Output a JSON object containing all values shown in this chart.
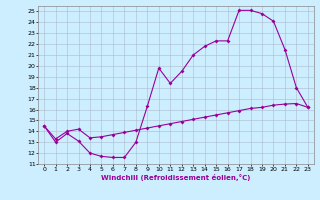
{
  "title": "",
  "xlabel": "Windchill (Refroidissement éolien,°C)",
  "bg_color": "#cceeff",
  "line_color": "#990099",
  "marker": "D",
  "markersize": 2,
  "linewidth": 0.8,
  "xlim": [
    -0.5,
    23.5
  ],
  "ylim": [
    11,
    25.5
  ],
  "yticks": [
    11,
    12,
    13,
    14,
    15,
    16,
    17,
    18,
    19,
    20,
    21,
    22,
    23,
    24,
    25
  ],
  "xticks": [
    0,
    1,
    2,
    3,
    4,
    5,
    6,
    7,
    8,
    9,
    10,
    11,
    12,
    13,
    14,
    15,
    16,
    17,
    18,
    19,
    20,
    21,
    22,
    23
  ],
  "series1_x": [
    0,
    1,
    2,
    3,
    4,
    5,
    6,
    7,
    8,
    9,
    10,
    11,
    12,
    13,
    14,
    15,
    16,
    17,
    18,
    19,
    20,
    21,
    22,
    23
  ],
  "series1_y": [
    14.5,
    13.0,
    13.8,
    13.1,
    12.0,
    11.7,
    11.6,
    11.6,
    13.0,
    16.3,
    19.8,
    18.4,
    19.5,
    21.0,
    21.8,
    22.3,
    22.3,
    25.1,
    25.1,
    24.8,
    24.1,
    21.5,
    18.0,
    16.2
  ],
  "series2_x": [
    0,
    1,
    2,
    3,
    4,
    5,
    6,
    7,
    8,
    9,
    10,
    11,
    12,
    13,
    14,
    15,
    16,
    17,
    18,
    19,
    20,
    21,
    22,
    23
  ],
  "series2_y": [
    14.5,
    13.3,
    14.0,
    14.2,
    13.4,
    13.5,
    13.7,
    13.9,
    14.1,
    14.3,
    14.5,
    14.7,
    14.9,
    15.1,
    15.3,
    15.5,
    15.7,
    15.9,
    16.1,
    16.2,
    16.4,
    16.5,
    16.55,
    16.2
  ],
  "tick_fontsize": 4.5,
  "xlabel_fontsize": 5.0,
  "xlabel_color": "#990099",
  "grid_color": "#aabbcc",
  "spine_color": "#888888"
}
